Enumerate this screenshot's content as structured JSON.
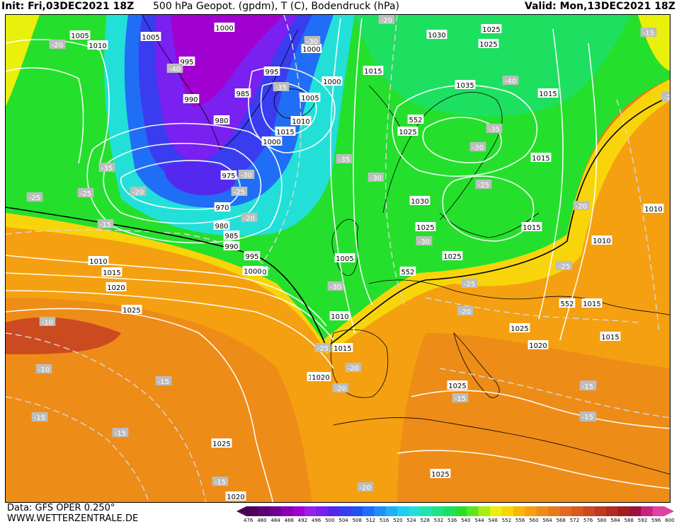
{
  "header": {
    "init": "Init: Fri,03DEC2021 18Z",
    "title": "500 hPa Geopot. (gpdm), T (C), Bodendruck (hPa)",
    "valid": "Valid: Mon,13DEC2021 18Z"
  },
  "footer": {
    "data_source": "Data: GFS OPER 0.250°",
    "website": "WWW.WETTERZENTRALE.DE"
  },
  "colors": {
    "scale": [
      "#4b0058",
      "#5c0075",
      "#6d008f",
      "#8a00b0",
      "#a000d0",
      "#9b1fe8",
      "#7a20f0",
      "#5528f0",
      "#3a3cf0",
      "#2050f0",
      "#1f6ef5",
      "#1e90f5",
      "#1fb0f5",
      "#21cdf0",
      "#22e0d8",
      "#20e4b0",
      "#1ee488",
      "#1ee060",
      "#24e02c",
      "#5fe61a",
      "#a8ee12",
      "#e8f00c",
      "#f8d40a",
      "#f8b80a",
      "#f4a010",
      "#ee8c18",
      "#e87a1e",
      "#e06a20",
      "#d85a20",
      "#cc4a20",
      "#c03a20",
      "#b02c20",
      "#a01e20",
      "#9a1040",
      "#cc2080",
      "#e040a0"
    ],
    "contour": "#ffffff",
    "front552": "#000000"
  },
  "scale_labels": [
    "476",
    "480",
    "484",
    "488",
    "492",
    "496",
    "500",
    "504",
    "508",
    "512",
    "516",
    "520",
    "524",
    "528",
    "532",
    "536",
    "540",
    "544",
    "548",
    "552",
    "556",
    "560",
    "564",
    "568",
    "572",
    "576",
    "580",
    "584",
    "588",
    "592",
    "596",
    "600"
  ],
  "pressure_labels": [
    "1005",
    "1010",
    "1005",
    "1000",
    "1000",
    "1030",
    "1025",
    "995",
    "990",
    "985",
    "995",
    "1000",
    "1015",
    "1005",
    "1035",
    "980",
    "1015",
    "1010",
    "1000",
    "1025",
    "1015",
    "975",
    "970",
    "980",
    "985",
    "990",
    "995",
    "1000",
    "1030",
    "1025",
    "1015",
    "1020",
    "1010",
    "1015",
    "1020",
    "1025",
    "1005",
    "1010",
    "1015",
    "1025",
    "1015",
    "1025",
    "1020",
    "1025",
    "1025",
    "1020",
    "1025",
    "1025",
    "1020",
    "1015",
    "1010",
    "1010",
    "1015",
    "1000"
  ],
  "temp_labels": [
    "-20",
    "-40",
    "-30",
    "-35",
    "-35",
    "-25",
    "-20",
    "-25",
    "-15",
    "-30",
    "-25",
    "-20",
    "-40",
    "-35",
    "-35",
    "-30",
    "-30",
    "-30",
    "-25",
    "-20",
    "-25",
    "-30",
    "-25",
    "-20",
    "-15",
    "-10",
    "-10",
    "-15",
    "-15",
    "-15",
    "-15",
    "-20",
    "-20",
    "-25",
    "-20",
    "-20",
    "-15",
    "-20",
    "-15",
    "-20",
    "-15",
    "-15",
    "-30",
    "-25"
  ],
  "front_labels": [
    "552",
    "552",
    "552"
  ]
}
